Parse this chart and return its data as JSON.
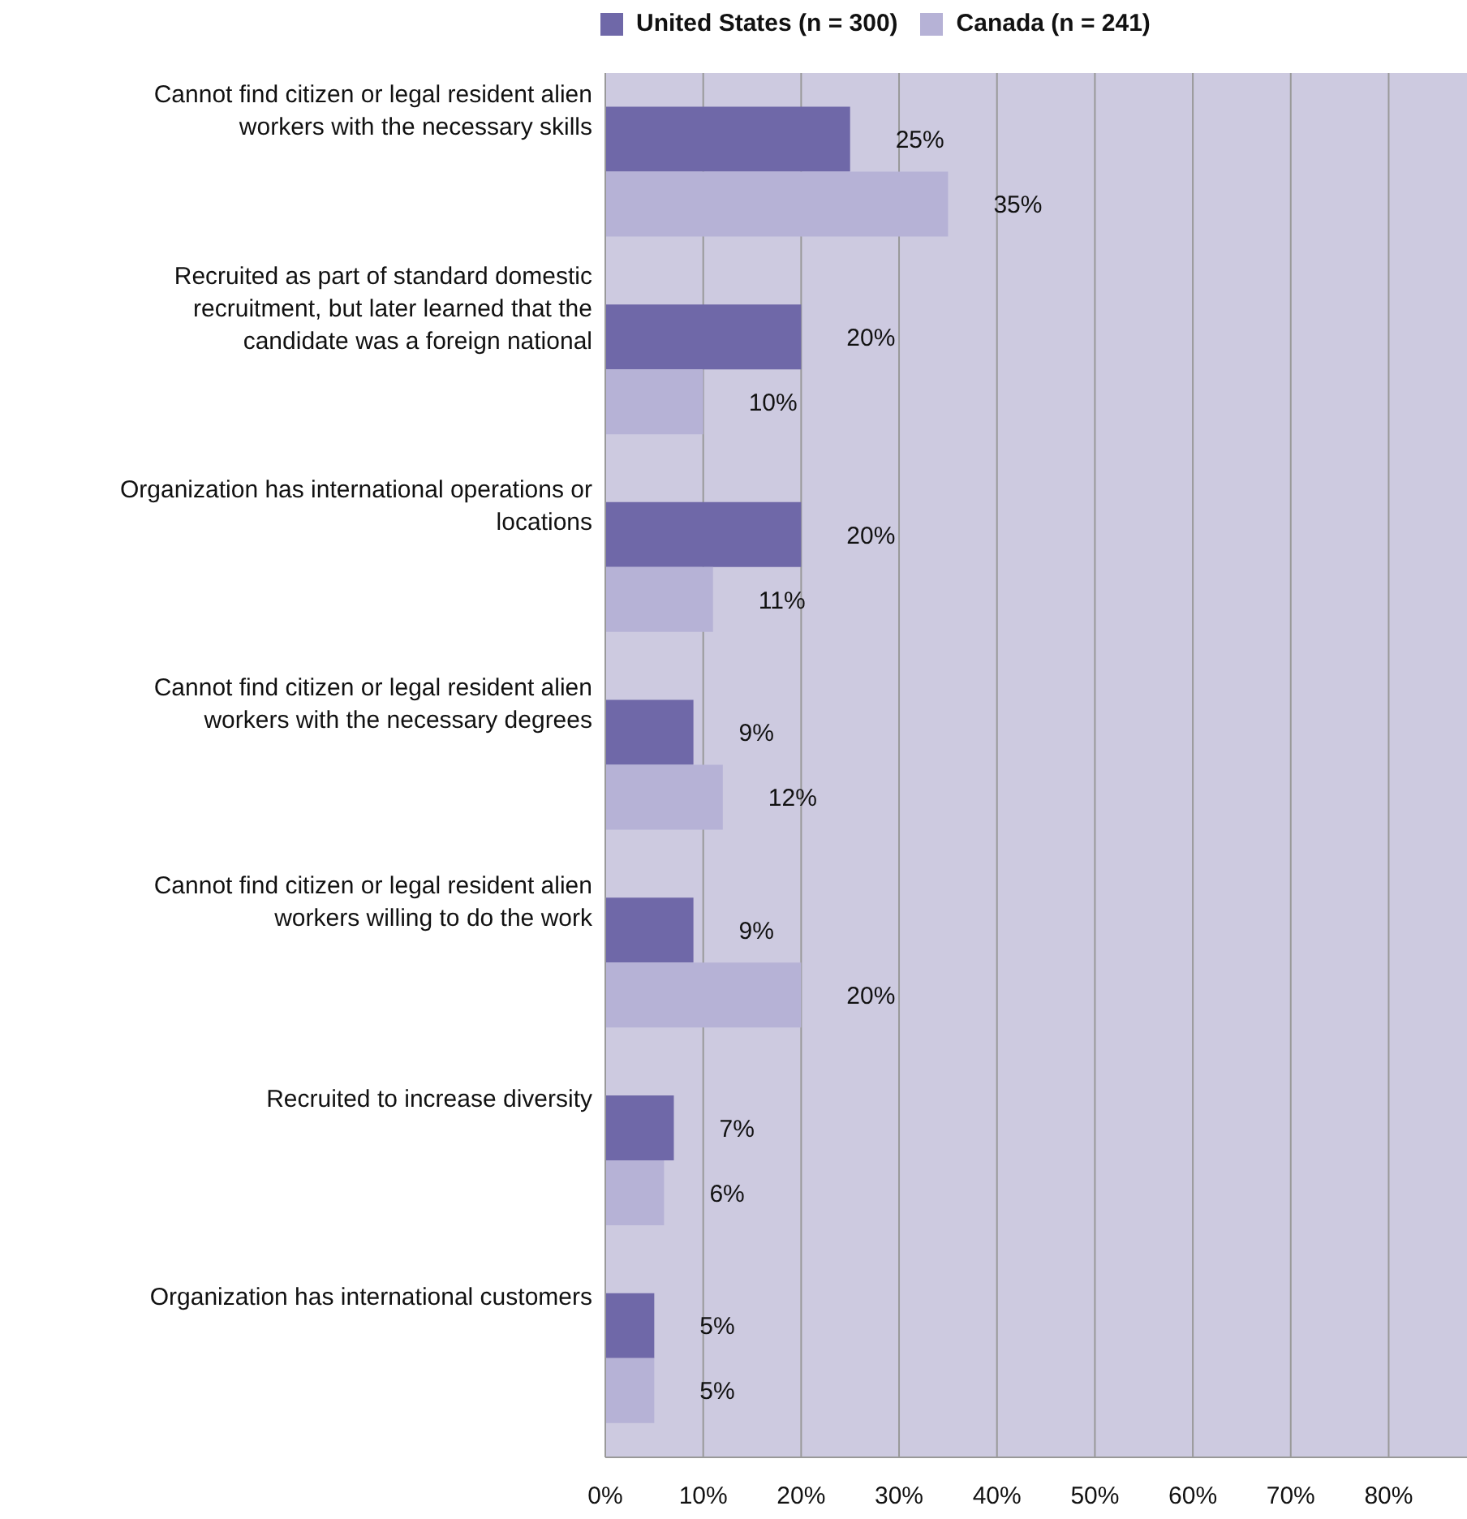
{
  "chart_data": {
    "type": "bar",
    "orientation": "horizontal",
    "categories": [
      "Cannot find citizen or legal resident alien workers with the necessary skills",
      "Recruited as part of standard domestic recruitment, but later learned that the candidate was a foreign national",
      "Organization has international operations or locations",
      "Cannot find citizen or legal resident alien workers with the necessary degrees",
      "Cannot find citizen or legal resident alien workers willing to do the work",
      "Recruited to increase diversity",
      "Organization has international customers"
    ],
    "series": [
      {
        "name": "United States (n = 300)",
        "color": "#6f68a8",
        "values": [
          25,
          20,
          20,
          9,
          9,
          7,
          5
        ],
        "value_labels": [
          "25%",
          "20%",
          "20%",
          "9%",
          "9%",
          "7%",
          "5%"
        ]
      },
      {
        "name": "Canada (n = 241)",
        "color": "#b6b2d6",
        "values": [
          35,
          10,
          11,
          12,
          20,
          6,
          5
        ],
        "value_labels": [
          "35%",
          "10%",
          "11%",
          "12%",
          "20%",
          "6%",
          "5%"
        ]
      }
    ],
    "xlim": [
      0,
      88
    ],
    "xticks": [
      {
        "value": 0,
        "label": "0%"
      },
      {
        "value": 10,
        "label": "10%"
      },
      {
        "value": 20,
        "label": "20%"
      },
      {
        "value": 30,
        "label": "30%"
      },
      {
        "value": 40,
        "label": "40%"
      },
      {
        "value": 50,
        "label": "50%"
      },
      {
        "value": 60,
        "label": "60%"
      },
      {
        "value": 70,
        "label": "70%"
      },
      {
        "value": 80,
        "label": "80%"
      }
    ],
    "grid": "x",
    "legend": "top"
  }
}
